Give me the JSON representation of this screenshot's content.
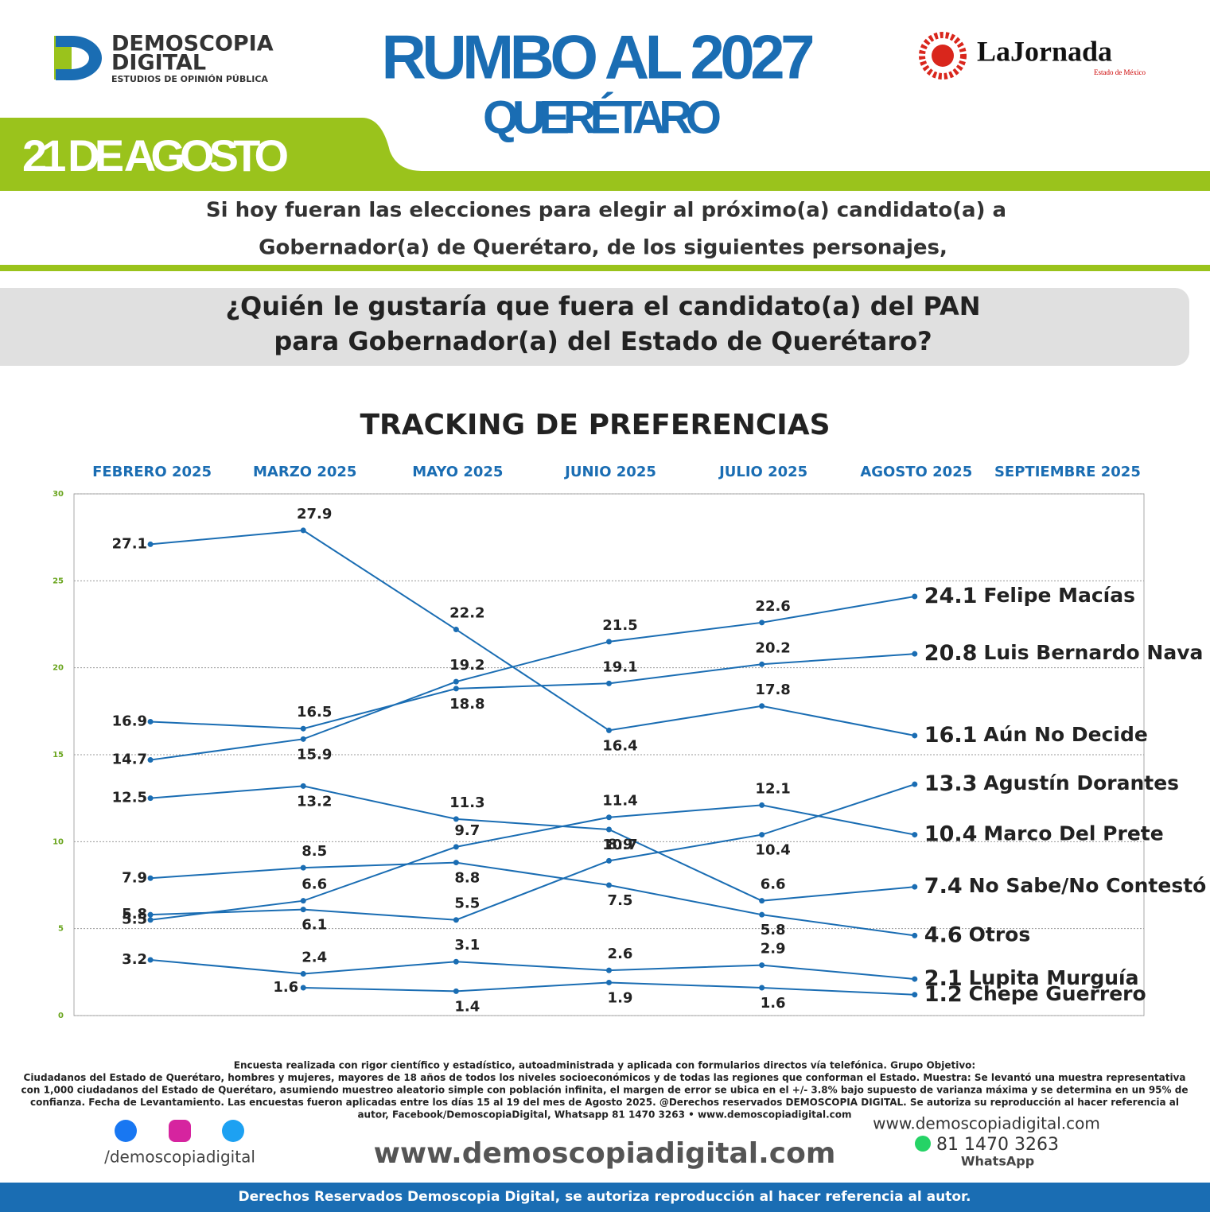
{
  "header": {
    "brand": "DEMOSCOPIA",
    "brand2": "DIGITAL",
    "brand_tagline": "ESTUDIOS DE OPINIÓN PÚBLICA",
    "title": "RUMBO AL 2027",
    "subtitle": "QUERÉTARO",
    "date": "21 DE AGOSTO",
    "partner": "LaJornada",
    "partner_tagline": "Estado de México"
  },
  "intro": [
    "Si hoy fueran las elecciones para elegir al próximo(a) candidato(a) a",
    "Gobernador(a) de Querétaro, de los siguientes personajes,"
  ],
  "question": [
    "¿Quién le gustaría que fuera el candidato(a) del PAN",
    "para Gobernador(a) del Estado de Querétaro?"
  ],
  "chart_data": {
    "type": "line",
    "title": "TRACKING DE PREFERENCIAS",
    "categories": [
      "FEBRERO 2025",
      "MARZO 2025",
      "MAYO 2025",
      "JUNIO 2025",
      "JULIO 2025",
      "AGOSTO 2025",
      "SEPTIEMBRE 2025"
    ],
    "ylim": [
      0,
      30
    ],
    "yticks": [
      0,
      5,
      10,
      15,
      20,
      25,
      30
    ],
    "grid": true,
    "series": [
      {
        "name": "Felipe Macías",
        "color": "#1a6db3",
        "values": [
          14.7,
          15.9,
          19.2,
          21.5,
          22.6,
          24.1,
          null
        ]
      },
      {
        "name": "Luis Bernardo Nava",
        "color": "#1a6db3",
        "values": [
          16.9,
          16.5,
          18.8,
          19.1,
          20.2,
          20.8,
          null
        ]
      },
      {
        "name": "Aún No Decide",
        "color": "#1a6db3",
        "values": [
          27.1,
          27.9,
          22.2,
          16.4,
          17.8,
          16.1,
          null
        ]
      },
      {
        "name": "Agustín Dorantes",
        "color": "#1a6db3",
        "values": [
          5.8,
          6.1,
          5.5,
          8.9,
          10.4,
          13.3,
          null
        ]
      },
      {
        "name": "Marco Del Prete",
        "color": "#1a6db3",
        "values": [
          5.5,
          6.6,
          9.7,
          11.4,
          12.1,
          10.4,
          null
        ]
      },
      {
        "name": "No Sabe/No Contestó",
        "color": "#1a6db3",
        "values": [
          12.5,
          13.2,
          11.3,
          10.7,
          6.6,
          7.4,
          null
        ]
      },
      {
        "name": "Otros",
        "color": "#1a6db3",
        "values": [
          7.9,
          8.5,
          8.8,
          7.5,
          5.8,
          4.6,
          null
        ]
      },
      {
        "name": "Lupita Murguía",
        "color": "#1a6db3",
        "values": [
          3.2,
          2.4,
          3.1,
          2.6,
          2.9,
          2.1,
          null
        ]
      },
      {
        "name": "Chepe Guerrero",
        "color": "#1a6db3",
        "values": [
          null,
          1.6,
          1.4,
          1.9,
          1.6,
          1.2,
          null
        ]
      }
    ]
  },
  "footer": {
    "note": [
      "Encuesta realizada con rigor científico y estadístico, autoadministrada y aplicada con formularios directos vía telefónica. Grupo Objetivo:",
      "Ciudadanos del Estado de Querétaro, hombres y mujeres, mayores de 18 años de todos los niveles socioeconómicos y de todas las regiones que conforman el Estado. Muestra: Se levantó una muestra representativa",
      "con 1,000 ciudadanos del Estado de Querétaro, asumiendo muestreo aleatorio simple con población infinita, el margen de error se ubica en el +/- 3.8% bajo supuesto de varianza máxima y se determina en un 95% de",
      "confianza. Fecha de Levantamiento. Las encuestas fueron aplicadas entre los días 15 al 19 del mes de Agosto 2025. @Derechos reservados DEMOSCOPIA DIGITAL. Se autoriza su reproducción al hacer referencia al",
      "autor, Facebook/DemoscopiaDigital, Whatsapp 81 1470 3263 • www.demoscopiadigital.com"
    ],
    "social": "/demoscopiadigital",
    "website": "www.demoscopiadigital.com",
    "website_small": "www.demoscopiadigital.com",
    "phone": "81 1470 3263",
    "whatsapp": "WhatsApp",
    "rights": "Derechos Reservados Demoscopia Digital, se autoriza reproducción al hacer referencia al autor."
  }
}
